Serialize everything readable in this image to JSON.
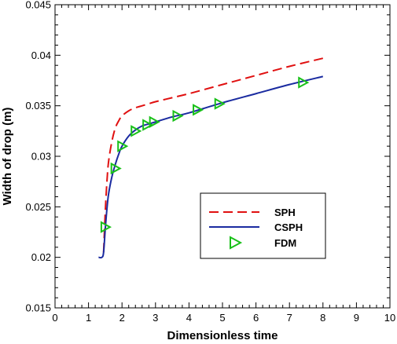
{
  "chart_data": {
    "type": "line",
    "xlabel": "Dimensionless time",
    "ylabel": "Width of drop (m)",
    "xlim": [
      0,
      10
    ],
    "ylim": [
      0.015,
      0.045
    ],
    "x_ticks": [
      "0",
      "1",
      "2",
      "3",
      "4",
      "5",
      "6",
      "7",
      "8",
      "9",
      "10"
    ],
    "y_ticks": [
      "0.015",
      "0.02",
      "0.025",
      "0.03",
      "0.035",
      "0.04",
      "0.045"
    ],
    "grid": false,
    "legend_position": "center-right",
    "series": [
      {
        "name": "SPH",
        "style": "dashed-line",
        "color": "#e01010",
        "x": [
          1.45,
          1.5,
          1.55,
          1.6,
          1.7,
          1.8,
          1.9,
          2.0,
          2.2,
          2.4,
          2.6,
          2.8,
          3.0,
          3.5,
          4.0,
          5.0,
          6.0,
          7.0,
          8.0
        ],
        "y": [
          0.0205,
          0.0245,
          0.0275,
          0.0295,
          0.0315,
          0.0328,
          0.0335,
          0.034,
          0.0345,
          0.0348,
          0.035,
          0.0352,
          0.0354,
          0.0358,
          0.0362,
          0.0371,
          0.038,
          0.0389,
          0.0397
        ]
      },
      {
        "name": "CSPH",
        "style": "solid-line",
        "color": "#1a2ba0",
        "x": [
          1.3,
          1.4,
          1.45,
          1.5,
          1.55,
          1.6,
          1.7,
          1.8,
          1.9,
          2.0,
          2.2,
          2.4,
          2.6,
          2.8,
          3.0,
          3.5,
          4.0,
          5.0,
          6.0,
          7.0,
          8.0
        ],
        "y": [
          0.02,
          0.02,
          0.0205,
          0.0228,
          0.0248,
          0.0263,
          0.028,
          0.0292,
          0.0302,
          0.031,
          0.032,
          0.0326,
          0.033,
          0.0332,
          0.0334,
          0.0339,
          0.0343,
          0.0353,
          0.0362,
          0.0371,
          0.0379
        ]
      },
      {
        "name": "FDM",
        "style": "triangle-markers",
        "color": "#18c018",
        "x": [
          1.5,
          1.8,
          2.0,
          2.4,
          2.75,
          2.95,
          3.65,
          4.25,
          4.9,
          7.4
        ],
        "y": [
          0.023,
          0.0288,
          0.031,
          0.0325,
          0.0331,
          0.0334,
          0.034,
          0.0346,
          0.0352,
          0.0373
        ]
      }
    ]
  }
}
